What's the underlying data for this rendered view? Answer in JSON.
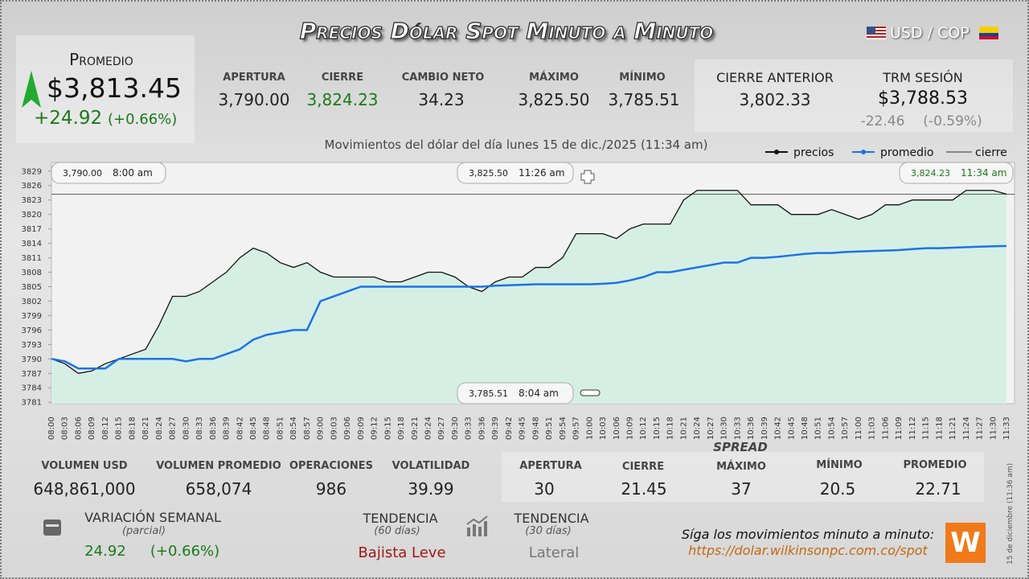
{
  "header": {
    "title": "Precios Dólar Spot Minuto a Minuto",
    "pair": "USD / COP"
  },
  "promedio": {
    "label": "Promedio",
    "value": "$3,813.45",
    "change": "+24.92",
    "change_pct": "(+0.66%)"
  },
  "stats": [
    {
      "label": "APERTURA",
      "value": "3,790.00"
    },
    {
      "label": "CIERRE",
      "value": "3,824.23"
    },
    {
      "label": "CAMBIO NETO",
      "value": "34.23"
    },
    {
      "label": "MÁXIMO",
      "value": "3,825.50"
    },
    {
      "label": "MÍNIMO",
      "value": "3,785.51"
    }
  ],
  "previous": {
    "label": "CIERRE ANTERIOR",
    "value": "3,802.33"
  },
  "trm": {
    "label": "TRM SESIÓN",
    "value": "$3,788.53",
    "change": "-22.46",
    "change_pct": "(-0.59%)"
  },
  "chart_data": {
    "type": "line",
    "subtitle": "Movimientos del dólar del día lunes 15 de dic./2025 (11:34 am)",
    "categories": [
      "08:00",
      "08:03",
      "08:06",
      "08:09",
      "08:12",
      "08:15",
      "08:18",
      "08:21",
      "08:24",
      "08:27",
      "08:30",
      "08:33",
      "08:36",
      "08:39",
      "08:42",
      "08:45",
      "08:48",
      "08:51",
      "08:54",
      "08:57",
      "09:00",
      "09:03",
      "09:06",
      "09:09",
      "09:12",
      "09:15",
      "09:18",
      "09:21",
      "09:24",
      "09:27",
      "09:30",
      "09:33",
      "09:36",
      "09:39",
      "09:42",
      "09:45",
      "09:48",
      "09:51",
      "09:54",
      "09:57",
      "10:00",
      "10:03",
      "10:06",
      "10:09",
      "10:12",
      "10:15",
      "10:18",
      "10:21",
      "10:24",
      "10:27",
      "10:30",
      "10:33",
      "10:36",
      "10:39",
      "10:42",
      "10:45",
      "10:48",
      "10:51",
      "10:54",
      "10:57",
      "11:00",
      "11:03",
      "11:06",
      "11:09",
      "11:12",
      "11:15",
      "11:18",
      "11:21",
      "11:24",
      "11:27",
      "11:30",
      "11:33"
    ],
    "series": [
      {
        "name": "precios",
        "color": "#111111",
        "values": [
          3790,
          3789,
          3787,
          3787.5,
          3789,
          3790,
          3791,
          3792,
          3797,
          3803,
          3803,
          3804,
          3806,
          3808,
          3811,
          3813,
          3812,
          3810,
          3809,
          3810,
          3808,
          3807,
          3807,
          3807,
          3807,
          3806,
          3806,
          3807,
          3808,
          3808,
          3807,
          3805,
          3804,
          3806,
          3807,
          3807,
          3809,
          3809,
          3811,
          3816,
          3816,
          3816,
          3815,
          3817,
          3818,
          3818,
          3818,
          3823,
          3825,
          3825,
          3825,
          3825,
          3822,
          3822,
          3822,
          3820,
          3820,
          3820,
          3821,
          3820,
          3819,
          3820,
          3822,
          3822,
          3823,
          3823,
          3823,
          3823,
          3825,
          3825,
          3825,
          3824.23
        ]
      },
      {
        "name": "promedio",
        "color": "#1a73e8",
        "values": [
          3790,
          3789.5,
          3788,
          3788,
          3788,
          3790,
          3790,
          3790,
          3790,
          3790,
          3789.5,
          3790,
          3790,
          3791,
          3792,
          3794,
          3795,
          3795.5,
          3796,
          3796,
          3802,
          3803,
          3804,
          3805,
          3805,
          3805,
          3805,
          3805,
          3805,
          3805,
          3805,
          3805,
          3805,
          3805.2,
          3805.3,
          3805.4,
          3805.5,
          3805.5,
          3805.5,
          3805.5,
          3805.5,
          3805.6,
          3805.8,
          3806.3,
          3807,
          3808,
          3808,
          3808.5,
          3809,
          3809.5,
          3810,
          3810,
          3811,
          3811,
          3811.2,
          3811.5,
          3811.8,
          3812,
          3812,
          3812.2,
          3812.3,
          3812.4,
          3812.5,
          3812.6,
          3812.8,
          3813,
          3813,
          3813.1,
          3813.2,
          3813.3,
          3813.4,
          3813.45
        ]
      }
    ],
    "reference_lines": [
      {
        "name": "cierre",
        "value": 3824.23,
        "color": "#333333"
      }
    ],
    "annotations": [
      {
        "price": "3,790.00",
        "time": "8:00 am"
      },
      {
        "price": "3,825.50",
        "time": "11:26 am"
      },
      {
        "price": "3,824.23",
        "time": "11:34 am"
      },
      {
        "price": "3,785.51",
        "time": "8:04 am"
      }
    ],
    "ylim": [
      3780.7,
      3830.8
    ],
    "yticks": [
      3781,
      3784,
      3787,
      3790,
      3793,
      3796,
      3799,
      3802,
      3805,
      3808,
      3811,
      3814,
      3817,
      3820,
      3823,
      3826,
      3829
    ],
    "fill": "#d6efe5"
  },
  "volume": [
    {
      "label": "VOLUMEN USD",
      "value": "648,861,000"
    },
    {
      "label": "VOLUMEN PROMEDIO",
      "value": "658,074"
    },
    {
      "label": "OPERACIONES",
      "value": "986"
    },
    {
      "label": "VOLATILIDAD",
      "value": "39.99"
    }
  ],
  "spread": {
    "title": "SPREAD",
    "items": [
      {
        "label": "APERTURA",
        "value": "30"
      },
      {
        "label": "CIERRE",
        "value": "21.45"
      },
      {
        "label": "MÁXIMO",
        "value": "37"
      },
      {
        "label": "MÍNIMO",
        "value": "20.5"
      },
      {
        "label": "PROMEDIO",
        "value": "22.71"
      }
    ]
  },
  "weekly": {
    "label": "VARIACIÓN SEMANAL",
    "note": "(parcial)",
    "change": "24.92",
    "change_pct": "(+0.66%)"
  },
  "trend60": {
    "label": "TENDENCIA",
    "note": "(60 días)",
    "value": "Bajista Leve"
  },
  "trend30": {
    "label": "TENDENCIA",
    "note": "(30 días)",
    "value": "Lateral"
  },
  "footer": {
    "text": "Síga los movimientos minuto a minuto:",
    "url": "https://dolar.wilkinsonpc.com.co/spot"
  },
  "timestamp": "15 de diciembre (11:36 am)"
}
